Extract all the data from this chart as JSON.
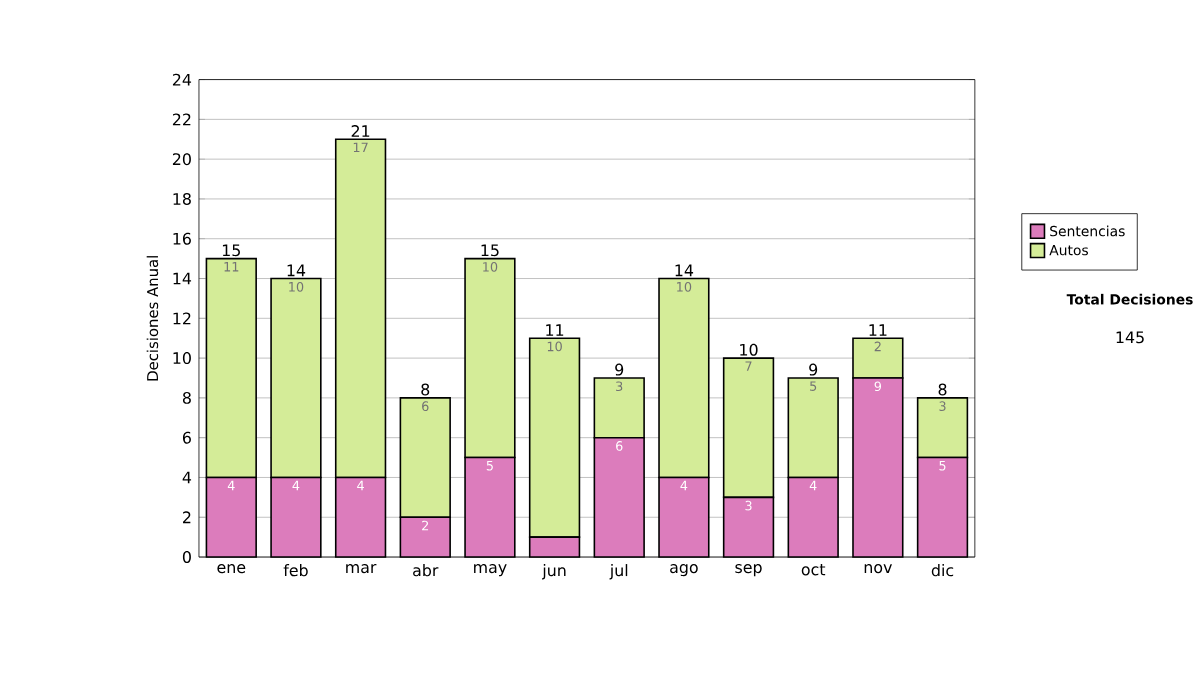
{
  "chart_data": {
    "type": "bar",
    "stacked": true,
    "ylabel": "Decisiones Anual",
    "categories": [
      "ene",
      "feb",
      "mar",
      "abr",
      "may",
      "jun",
      "jul",
      "ago",
      "sep",
      "oct",
      "nov",
      "dic"
    ],
    "series": [
      {
        "name": "Sentencias",
        "color": "#dc7cbc",
        "values": [
          4,
          4,
          4,
          2,
          5,
          1,
          6,
          4,
          3,
          4,
          9,
          5
        ],
        "value_labels": [
          "4",
          "4",
          "4",
          "2",
          "5",
          null,
          "6",
          "4",
          "3",
          "4",
          "9",
          "5"
        ]
      },
      {
        "name": "Autos",
        "color": "#d4ec98",
        "values": [
          11,
          10,
          17,
          6,
          10,
          10,
          3,
          10,
          7,
          5,
          2,
          3
        ],
        "value_labels": [
          "11",
          "10",
          "17",
          "6",
          "10",
          "10",
          "3",
          "10",
          "7",
          "5",
          "2",
          "3"
        ]
      }
    ],
    "totals": [
      "15",
      "14",
      "21",
      "8",
      "15",
      "11",
      "9",
      "14",
      "10",
      "9",
      "11",
      "8"
    ],
    "ylim": [
      0,
      24
    ],
    "yticks": [
      0,
      2,
      4,
      6,
      8,
      10,
      12,
      14,
      16,
      18,
      20,
      22,
      24
    ],
    "grid": "y",
    "legend": "right",
    "annotations": [
      "Total Decisiones",
      "145"
    ]
  }
}
